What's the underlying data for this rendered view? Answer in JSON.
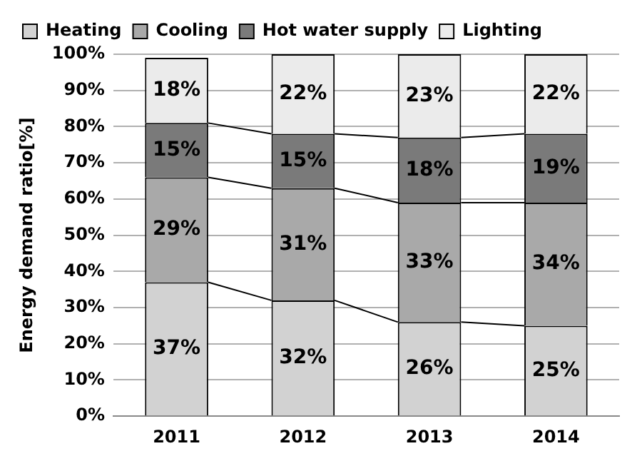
{
  "chart_data": {
    "type": "bar",
    "stacked": true,
    "ylabel": "Energy demand ratio[%]",
    "categories": [
      "2011",
      "2012",
      "2013",
      "2014"
    ],
    "series": [
      {
        "name": "Heating",
        "color": "#d2d2d2",
        "values": [
          37,
          32,
          26,
          25
        ],
        "value_labels": [
          "37%",
          "32%",
          "26%",
          "25%"
        ]
      },
      {
        "name": "Cooling",
        "color": "#a9a9a9",
        "values": [
          29,
          31,
          33,
          34
        ],
        "value_labels": [
          "29%",
          "31%",
          "33%",
          "34%"
        ]
      },
      {
        "name": "Hot water supply",
        "color": "#7a7a7a",
        "values": [
          15,
          15,
          18,
          19
        ],
        "value_labels": [
          "15%",
          "15%",
          "18%",
          "19%"
        ]
      },
      {
        "name": "Lighting",
        "color": "#ebebeb",
        "values": [
          18,
          22,
          23,
          22
        ],
        "value_labels": [
          "18%",
          "22%",
          "23%",
          "22%"
        ]
      }
    ],
    "ylim": [
      0,
      100
    ],
    "yticks": [
      {
        "value": 0,
        "label": "0%"
      },
      {
        "value": 10,
        "label": "10%"
      },
      {
        "value": 20,
        "label": "20%"
      },
      {
        "value": 30,
        "label": "30%"
      },
      {
        "value": 40,
        "label": "40%"
      },
      {
        "value": 50,
        "label": "50%"
      },
      {
        "value": 60,
        "label": "60%"
      },
      {
        "value": 70,
        "label": "70%"
      },
      {
        "value": 80,
        "label": "80%"
      },
      {
        "value": 90,
        "label": "90%"
      },
      {
        "value": 100,
        "label": "100%"
      }
    ],
    "grid": "y",
    "legend": "top"
  }
}
